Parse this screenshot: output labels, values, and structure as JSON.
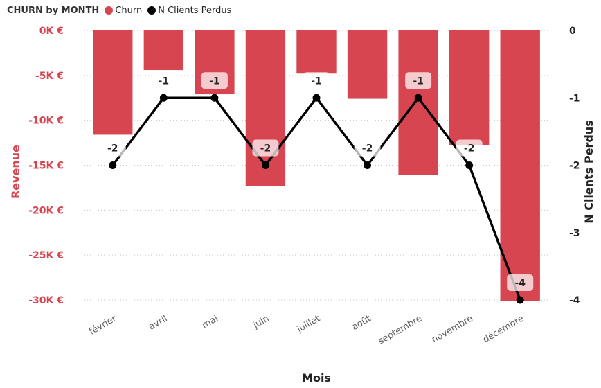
{
  "legend": {
    "title": "CHURN by MONTH",
    "items": [
      {
        "label": "Churn",
        "color": "#d64550"
      },
      {
        "label": "N Clients Perdus",
        "color": "#000000"
      }
    ]
  },
  "chart_data": {
    "type": "bar+line",
    "title": "CHURN by MONTH",
    "xlabel": "Mois",
    "ylabel_left": "Revenue",
    "ylabel_right": "N Clients Perdus",
    "categories": [
      "février",
      "avril",
      "mai",
      "juin",
      "juillet",
      "août",
      "septembre",
      "novembre",
      "décembre"
    ],
    "series": [
      {
        "name": "Churn",
        "type": "bar",
        "axis": "left",
        "color": "#d64550",
        "values": [
          -11600,
          -4400,
          -7100,
          -17300,
          -4800,
          -7600,
          -16100,
          -12800,
          -30100
        ]
      },
      {
        "name": "N Clients Perdus",
        "type": "line",
        "axis": "right",
        "color": "#000000",
        "values": [
          -2,
          -1,
          -1,
          -2,
          -1,
          -2,
          -1,
          -2,
          -4
        ],
        "data_labels": [
          "-2",
          "-1",
          "-1",
          "-2",
          "-1",
          "-2",
          "-1",
          "-2",
          "-4"
        ]
      }
    ],
    "y_left": {
      "ylim": [
        -30000,
        0
      ],
      "ticks": [
        0,
        -5000,
        -10000,
        -15000,
        -20000,
        -25000,
        -30000
      ],
      "tick_labels": [
        "0K €",
        "-5K €",
        "-10K €",
        "-15K €",
        "-20K €",
        "-25K €",
        "-30K €"
      ]
    },
    "y_right": {
      "ylim": [
        -4,
        0
      ],
      "ticks": [
        0,
        -1,
        -2,
        -3,
        -4
      ],
      "tick_labels": [
        "0",
        "-1",
        "-2",
        "-3",
        "-4"
      ]
    },
    "grid": "horizontal dotted",
    "legend_position": "top-left"
  }
}
